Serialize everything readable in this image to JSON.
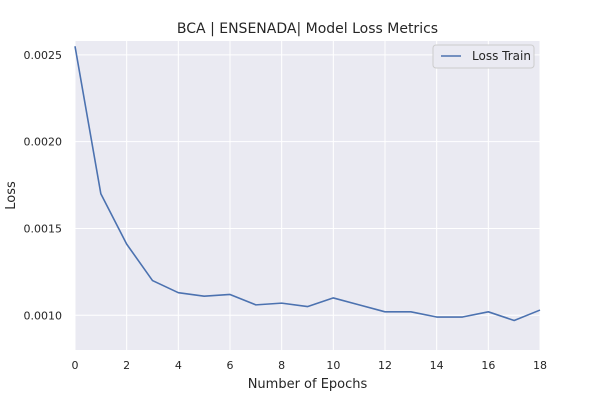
{
  "colors": {
    "plot_background": "#eaeaf2",
    "grid": "#ffffff",
    "series": "#4c72b0",
    "text": "#262626"
  },
  "chart_data": {
    "type": "line",
    "title": "BCA | ENSENADA| Model Loss Metrics",
    "xlabel": "Number of Epochs",
    "ylabel": "Loss",
    "xlim": [
      0,
      18
    ],
    "ylim": [
      0.0008,
      0.00258
    ],
    "xticks": [
      0,
      2,
      4,
      6,
      8,
      10,
      12,
      14,
      16,
      18
    ],
    "yticks": [
      0.001,
      0.0015,
      0.002,
      0.0025
    ],
    "ytick_labels": [
      "0.0010",
      "0.0015",
      "0.0020",
      "0.0025"
    ],
    "grid": true,
    "legend_position": "top-right",
    "series": [
      {
        "name": "Loss Train",
        "x": [
          0,
          1,
          2,
          3,
          4,
          5,
          6,
          7,
          8,
          9,
          10,
          11,
          12,
          13,
          14,
          15,
          16,
          17,
          18
        ],
        "values": [
          0.00255,
          0.0017,
          0.00141,
          0.0012,
          0.00113,
          0.00111,
          0.00112,
          0.00106,
          0.00107,
          0.00105,
          0.0011,
          0.00106,
          0.00102,
          0.00102,
          0.00099,
          0.00099,
          0.00102,
          0.00097,
          0.00103
        ]
      }
    ]
  }
}
